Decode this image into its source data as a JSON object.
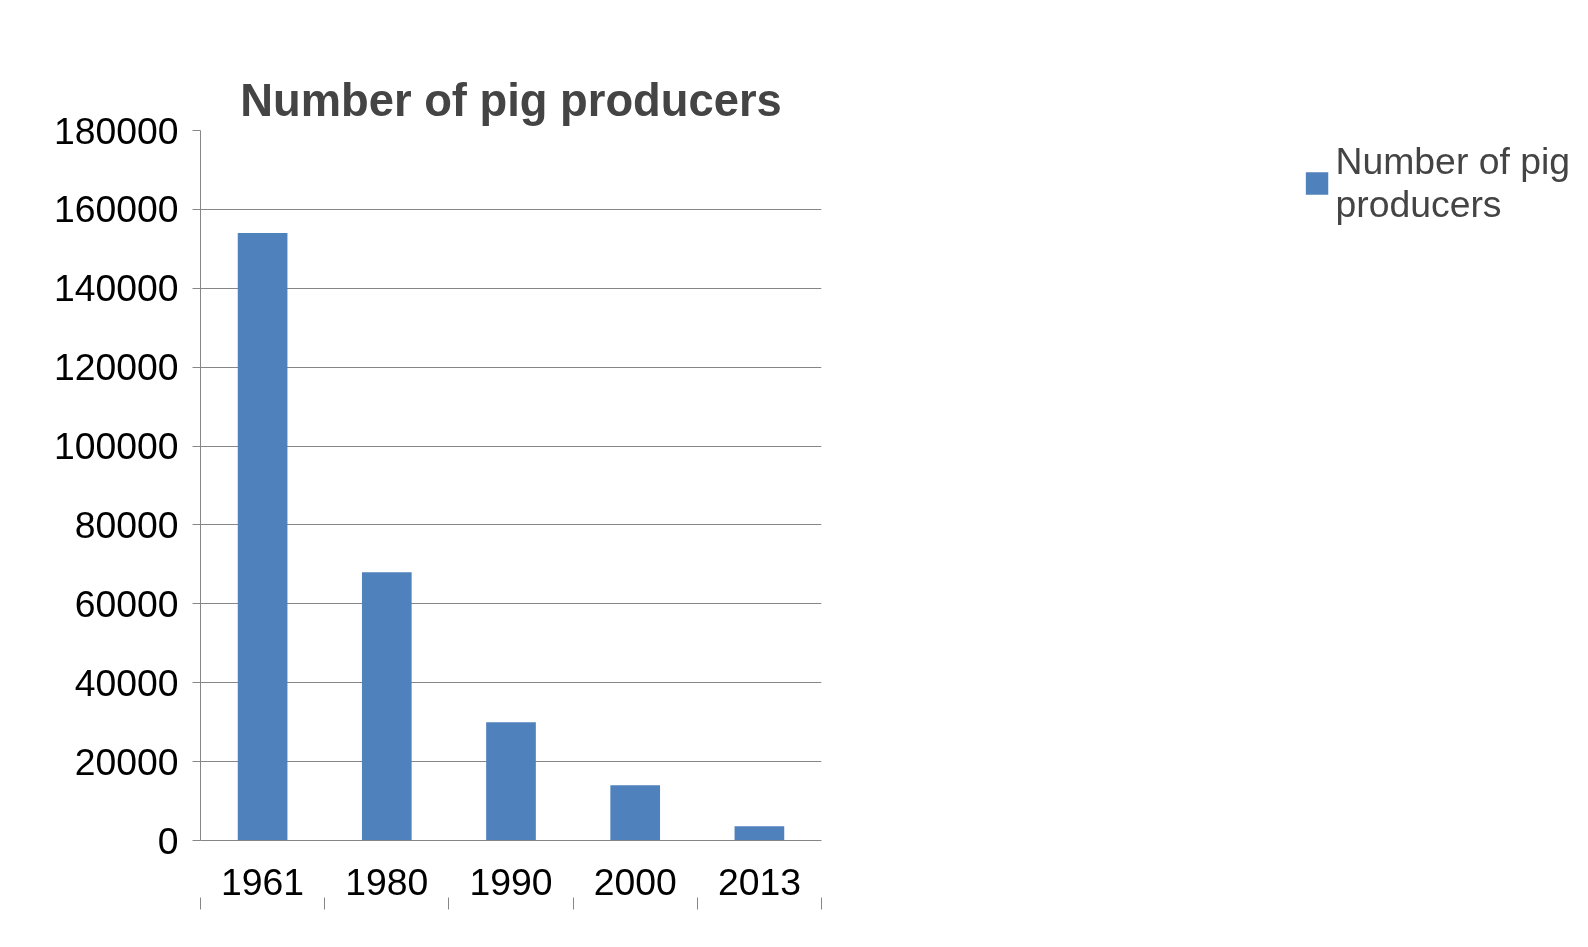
{
  "chart_data": {
    "type": "bar",
    "title": "Number of pig producers",
    "categories": [
      "1961",
      "1980",
      "1990",
      "2000",
      "2013"
    ],
    "series": [
      {
        "name": "Number of pig producers",
        "color": "#4f81bd",
        "values": [
          154000,
          68000,
          30000,
          14000,
          3600
        ]
      }
    ],
    "ylim": [
      0,
      180000
    ],
    "yticks": [
      0,
      20000,
      40000,
      60000,
      80000,
      100000,
      120000,
      140000,
      160000,
      180000
    ],
    "grid": "y",
    "legend": "right"
  }
}
